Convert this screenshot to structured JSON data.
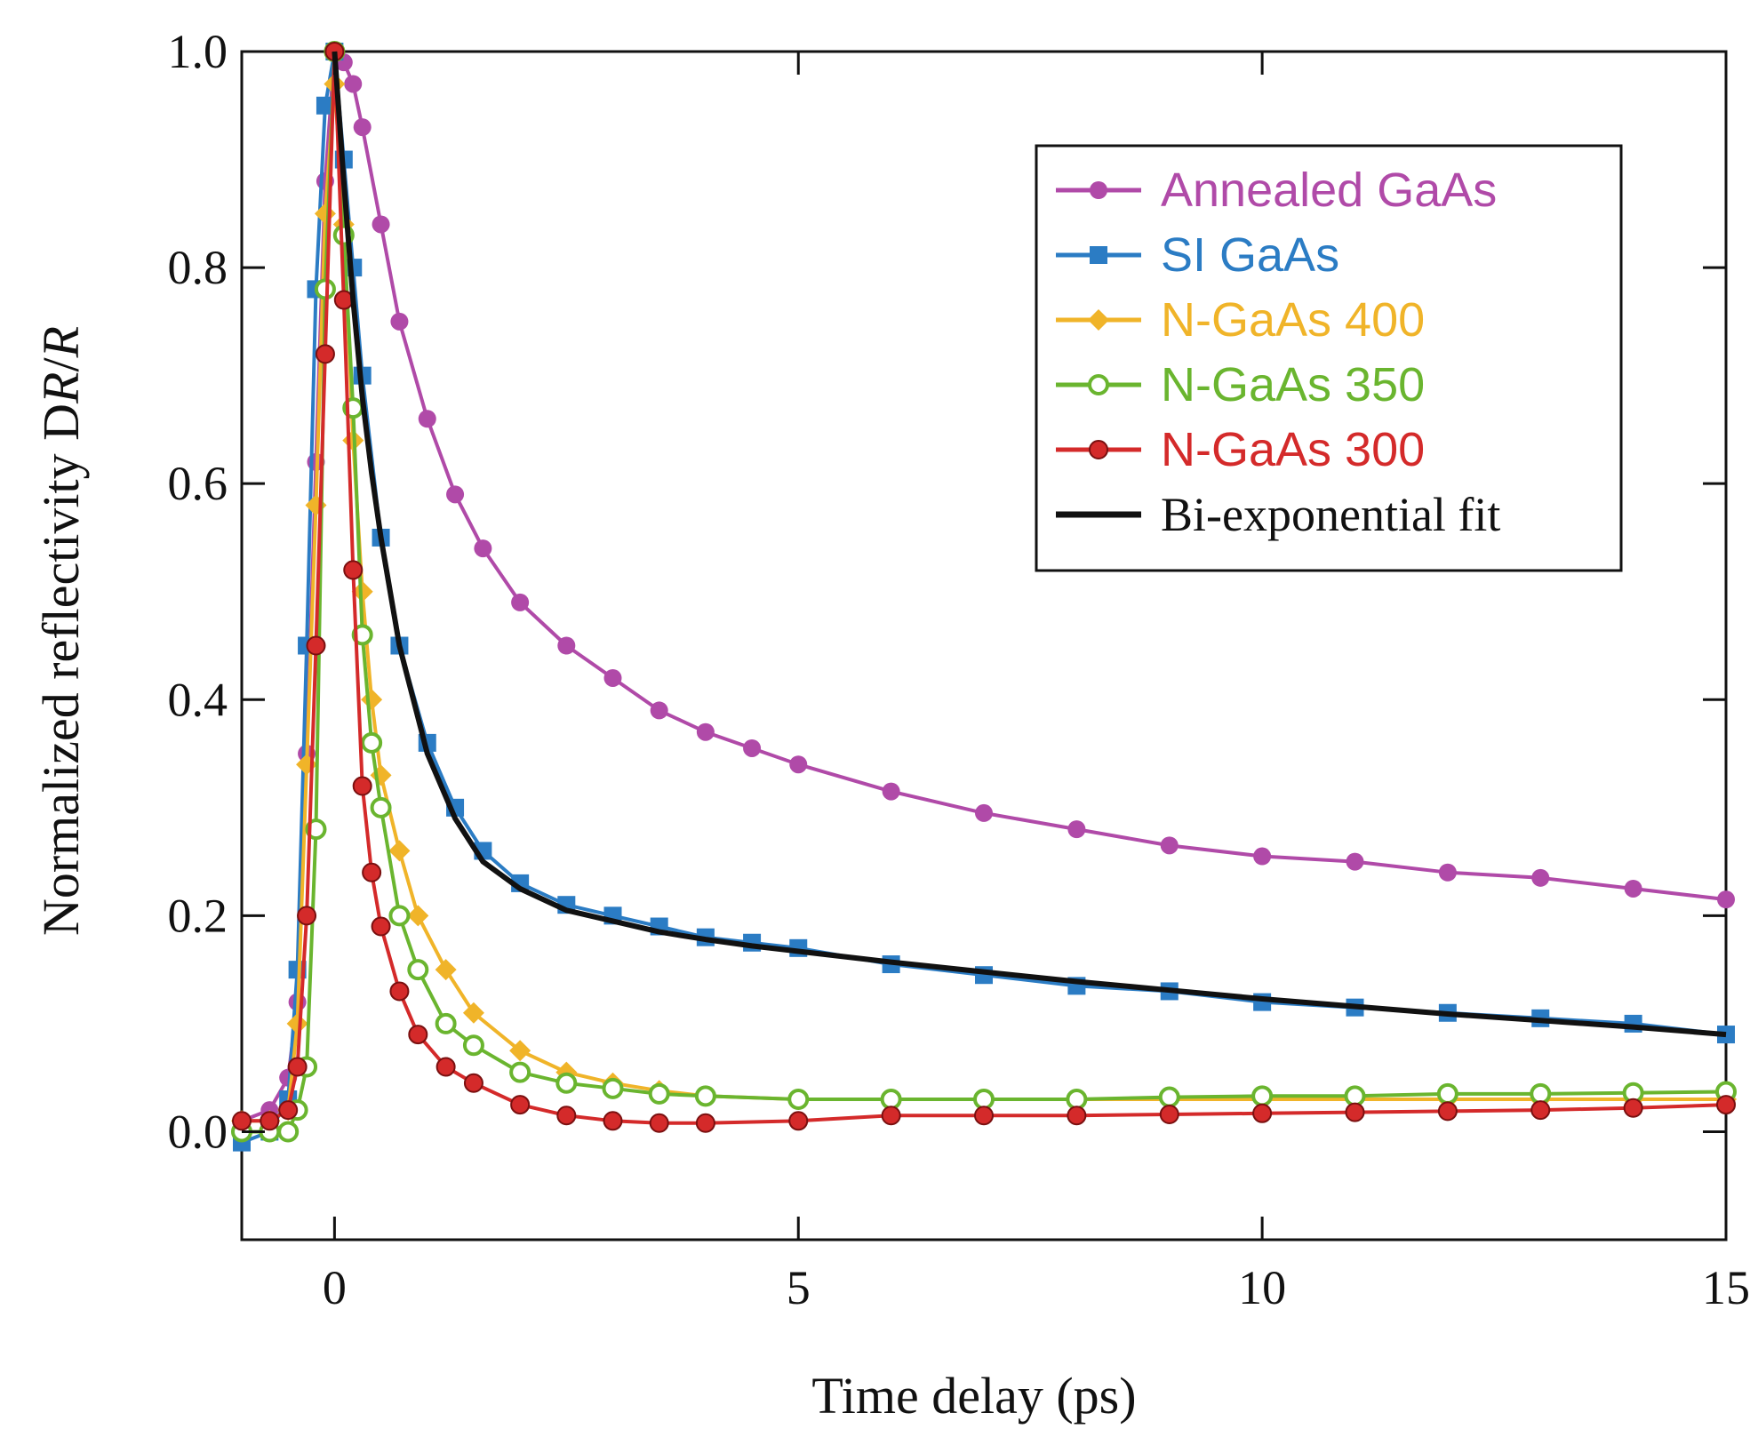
{
  "chart_data": {
    "type": "line",
    "title": "",
    "xlabel": "Time delay (ps)",
    "ylabel_prefix": "Normalized reflectivity D",
    "ylabel_r1": "R",
    "ylabel_slash": "/",
    "ylabel_r2": "R",
    "xlim": [
      -1,
      15
    ],
    "ylim": [
      -0.1,
      1.0
    ],
    "x_ticks": [
      0,
      5,
      10,
      15
    ],
    "x_tick_labels": [
      "0",
      "5",
      "10",
      "15"
    ],
    "y_ticks": [
      0.0,
      0.2,
      0.4,
      0.6,
      0.8,
      1.0
    ],
    "y_tick_labels": [
      "0.0",
      "0.2",
      "0.4",
      "0.6",
      "0.8",
      "1.0"
    ],
    "grid": false,
    "legend_position": "top-right",
    "series": [
      {
        "name": "Annealed GaAs",
        "color": "#b04aa8",
        "marker": "circle-filled",
        "x": [
          -1.0,
          -0.7,
          -0.5,
          -0.4,
          -0.3,
          -0.2,
          -0.1,
          0.0,
          0.1,
          0.2,
          0.3,
          0.5,
          0.7,
          1.0,
          1.3,
          1.6,
          2.0,
          2.5,
          3.0,
          3.5,
          4.0,
          4.5,
          5.0,
          6.0,
          7.0,
          8.0,
          9.0,
          10.0,
          11.0,
          12.0,
          13.0,
          14.0,
          15.0
        ],
        "values": [
          0.01,
          0.02,
          0.05,
          0.12,
          0.35,
          0.62,
          0.88,
          1.0,
          0.99,
          0.97,
          0.93,
          0.84,
          0.75,
          0.66,
          0.59,
          0.54,
          0.49,
          0.45,
          0.42,
          0.39,
          0.37,
          0.355,
          0.34,
          0.315,
          0.295,
          0.28,
          0.265,
          0.255,
          0.25,
          0.24,
          0.235,
          0.225,
          0.215
        ]
      },
      {
        "name": "SI GaAs",
        "color": "#2b7cc4",
        "marker": "square-filled",
        "x": [
          -1.0,
          -0.7,
          -0.5,
          -0.4,
          -0.3,
          -0.2,
          -0.1,
          0.0,
          0.1,
          0.2,
          0.3,
          0.5,
          0.7,
          1.0,
          1.3,
          1.6,
          2.0,
          2.5,
          3.0,
          3.5,
          4.0,
          4.5,
          5.0,
          6.0,
          7.0,
          8.0,
          9.0,
          10.0,
          11.0,
          12.0,
          13.0,
          14.0,
          15.0
        ],
        "values": [
          -0.01,
          0.0,
          0.03,
          0.15,
          0.45,
          0.78,
          0.95,
          1.0,
          0.9,
          0.8,
          0.7,
          0.55,
          0.45,
          0.36,
          0.3,
          0.26,
          0.23,
          0.21,
          0.2,
          0.19,
          0.18,
          0.175,
          0.17,
          0.155,
          0.145,
          0.135,
          0.13,
          0.12,
          0.115,
          0.11,
          0.105,
          0.1,
          0.09
        ]
      },
      {
        "name": "N-GaAs 400",
        "color": "#f0b429",
        "marker": "diamond-filled",
        "x": [
          -1.0,
          -0.7,
          -0.5,
          -0.4,
          -0.3,
          -0.2,
          -0.1,
          0.0,
          0.1,
          0.2,
          0.3,
          0.4,
          0.5,
          0.7,
          0.9,
          1.2,
          1.5,
          2.0,
          2.5,
          3.0,
          3.5,
          4.0,
          5.0,
          6.0,
          7.0,
          8.0,
          9.0,
          10.0,
          11.0,
          12.0,
          13.0,
          14.0,
          15.0
        ],
        "values": [
          0.01,
          0.01,
          0.02,
          0.1,
          0.34,
          0.58,
          0.85,
          0.97,
          0.84,
          0.64,
          0.5,
          0.4,
          0.33,
          0.26,
          0.2,
          0.15,
          0.11,
          0.075,
          0.055,
          0.045,
          0.038,
          0.033,
          0.03,
          0.03,
          0.03,
          0.03,
          0.03,
          0.03,
          0.03,
          0.03,
          0.03,
          0.03,
          0.03
        ]
      },
      {
        "name": "N-GaAs 350",
        "color": "#6ab52f",
        "marker": "circle-open",
        "x": [
          -1.0,
          -0.7,
          -0.5,
          -0.4,
          -0.3,
          -0.2,
          -0.1,
          0.0,
          0.1,
          0.2,
          0.3,
          0.4,
          0.5,
          0.7,
          0.9,
          1.2,
          1.5,
          2.0,
          2.5,
          3.0,
          3.5,
          4.0,
          5.0,
          6.0,
          7.0,
          8.0,
          9.0,
          10.0,
          11.0,
          12.0,
          13.0,
          14.0,
          15.0
        ],
        "values": [
          0.0,
          0.0,
          0.0,
          0.02,
          0.06,
          0.28,
          0.78,
          1.0,
          0.83,
          0.67,
          0.46,
          0.36,
          0.3,
          0.2,
          0.15,
          0.1,
          0.08,
          0.055,
          0.045,
          0.04,
          0.035,
          0.033,
          0.03,
          0.03,
          0.03,
          0.03,
          0.032,
          0.033,
          0.033,
          0.035,
          0.035,
          0.036,
          0.037
        ]
      },
      {
        "name": "N-GaAs 300",
        "color": "#d42a2a",
        "marker": "circle-filled-dark",
        "x": [
          -1.0,
          -0.7,
          -0.5,
          -0.4,
          -0.3,
          -0.2,
          -0.1,
          0.0,
          0.1,
          0.2,
          0.3,
          0.4,
          0.5,
          0.7,
          0.9,
          1.2,
          1.5,
          2.0,
          2.5,
          3.0,
          3.5,
          4.0,
          5.0,
          6.0,
          7.0,
          8.0,
          9.0,
          10.0,
          11.0,
          12.0,
          13.0,
          14.0,
          15.0
        ],
        "values": [
          0.01,
          0.01,
          0.02,
          0.06,
          0.2,
          0.45,
          0.72,
          1.0,
          0.77,
          0.52,
          0.32,
          0.24,
          0.19,
          0.13,
          0.09,
          0.06,
          0.045,
          0.025,
          0.015,
          0.01,
          0.008,
          0.008,
          0.01,
          0.015,
          0.015,
          0.015,
          0.016,
          0.017,
          0.018,
          0.019,
          0.02,
          0.022,
          0.025
        ]
      },
      {
        "name": "Bi-exponential fit",
        "color": "#111111",
        "marker": "none",
        "x": [
          0.0,
          0.1,
          0.2,
          0.3,
          0.4,
          0.5,
          0.7,
          1.0,
          1.3,
          1.6,
          2.0,
          2.5,
          3.0,
          3.5,
          4.0,
          4.5,
          5.0,
          6.0,
          7.0,
          8.0,
          9.0,
          10.0,
          11.0,
          12.0,
          13.0,
          14.0,
          15.0
        ],
        "values": [
          1.0,
          0.88,
          0.77,
          0.68,
          0.61,
          0.55,
          0.45,
          0.35,
          0.29,
          0.25,
          0.225,
          0.205,
          0.195,
          0.185,
          0.178,
          0.172,
          0.167,
          0.157,
          0.148,
          0.139,
          0.131,
          0.123,
          0.116,
          0.109,
          0.103,
          0.097,
          0.09
        ]
      }
    ]
  }
}
